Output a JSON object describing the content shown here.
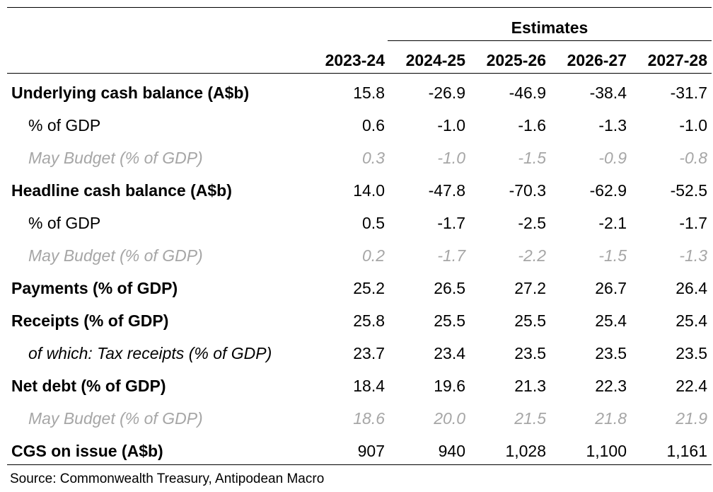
{
  "header": {
    "estimates_label": "Estimates",
    "years": [
      "2023-24",
      "2024-25",
      "2025-26",
      "2026-27",
      "2027-28"
    ]
  },
  "rows": [
    {
      "label": "Underlying cash balance (A$b)",
      "style": "bold",
      "values": [
        "15.8",
        "-26.9",
        "-46.9",
        "-38.4",
        "-31.7"
      ]
    },
    {
      "label": "% of GDP",
      "style": "sub",
      "values": [
        "0.6",
        "-1.0",
        "-1.6",
        "-1.3",
        "-1.0"
      ]
    },
    {
      "label": "May Budget (% of GDP)",
      "style": "faint",
      "values": [
        "0.3",
        "-1.0",
        "-1.5",
        "-0.9",
        "-0.8"
      ]
    },
    {
      "label": "Headline cash balance (A$b)",
      "style": "bold",
      "values": [
        "14.0",
        "-47.8",
        "-70.3",
        "-62.9",
        "-52.5"
      ]
    },
    {
      "label": "% of GDP",
      "style": "sub",
      "values": [
        "0.5",
        "-1.7",
        "-2.5",
        "-2.1",
        "-1.7"
      ]
    },
    {
      "label": "May Budget (% of GDP)",
      "style": "faint",
      "values": [
        "0.2",
        "-1.7",
        "-2.2",
        "-1.5",
        "-1.3"
      ]
    },
    {
      "label": "Payments (% of GDP)",
      "style": "bold",
      "values": [
        "25.2",
        "26.5",
        "27.2",
        "26.7",
        "26.4"
      ]
    },
    {
      "label": "Receipts (% of GDP)",
      "style": "bold",
      "values": [
        "25.8",
        "25.5",
        "25.5",
        "25.4",
        "25.4"
      ]
    },
    {
      "label": "of which: Tax receipts (% of GDP)",
      "style": "italic",
      "values": [
        "23.7",
        "23.4",
        "23.5",
        "23.5",
        "23.5"
      ]
    },
    {
      "label": "Net debt (% of GDP)",
      "style": "bold",
      "values": [
        "18.4",
        "19.6",
        "21.3",
        "22.3",
        "22.4"
      ]
    },
    {
      "label": "May Budget (% of GDP)",
      "style": "faint",
      "values": [
        "18.6",
        "20.0",
        "21.5",
        "21.8",
        "21.9"
      ]
    },
    {
      "label": "CGS on issue (A$b)",
      "style": "bold",
      "values": [
        "907",
        "940",
        "1,028",
        "1,100",
        "1,161"
      ]
    }
  ],
  "footer": {
    "source": "Source: Commonwealth Treasury, Antipodean Macro"
  }
}
